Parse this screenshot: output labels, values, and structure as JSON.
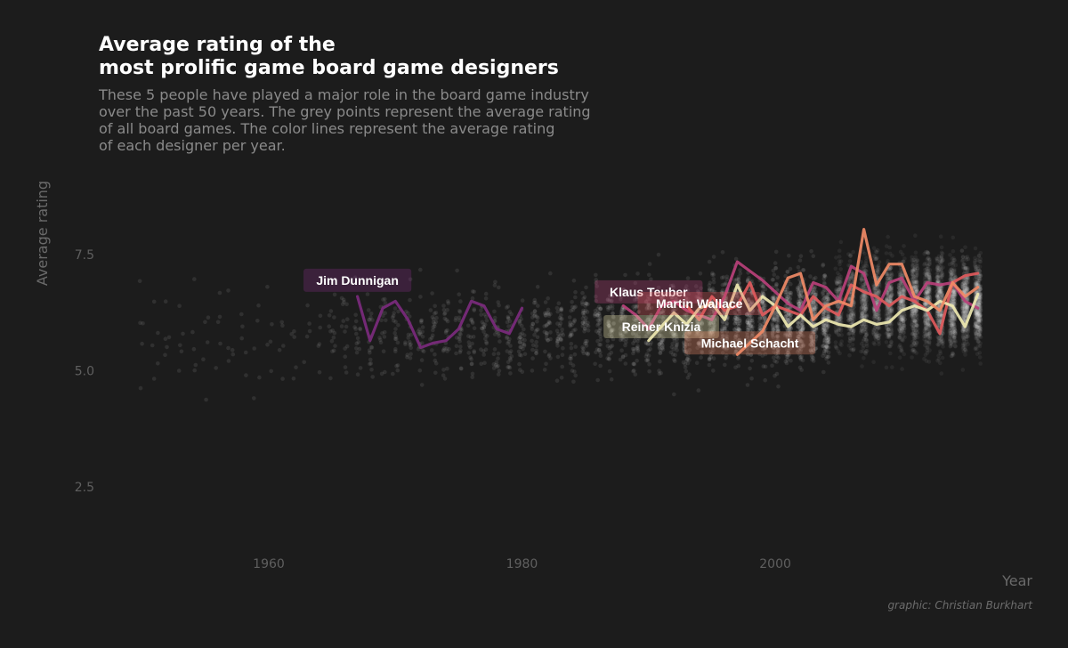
{
  "chart_data": {
    "type": "line",
    "title_lines": [
      "Average rating of the",
      "most prolific game board game designers"
    ],
    "subtitle_lines": [
      "These 5 people have played a major role in the board game industry",
      "over the past 50 years. The grey points represent the average rating",
      "of all board games. The color lines represent the average rating",
      "of each designer per year."
    ],
    "xlabel": "Year",
    "ylabel": "Average rating",
    "caption": "graphic: Christian Burkhart",
    "xlim": [
      1946.5,
      2017.5
    ],
    "ylim": [
      1.0,
      9.5
    ],
    "x_ticks": [
      1960,
      1980,
      2000
    ],
    "y_ticks": [
      2.5,
      5.0,
      7.5
    ],
    "y_tick_labels": [
      "2.5",
      "5.0",
      "7.5"
    ],
    "grid": false,
    "legend": "none (direct labels on lines)",
    "background_points": "grey scatter of average rating of all board games per year, 1950–2016, dense after 1990",
    "series": [
      {
        "name": "Jim Dunnigan",
        "color": "#7b2a7d",
        "label_year": 1967,
        "label_rating": 6.95,
        "x": [
          1967,
          1968,
          1969,
          1970,
          1971,
          1972,
          1973,
          1974,
          1975,
          1976,
          1977,
          1978,
          1979,
          1980
        ],
        "y": [
          6.6,
          5.65,
          6.35,
          6.5,
          6.1,
          5.5,
          5.6,
          5.65,
          5.9,
          6.5,
          6.4,
          5.9,
          5.8,
          6.35
        ]
      },
      {
        "name": "Klaus Teuber",
        "color": "#b8407a",
        "label_year": 1990,
        "label_rating": 6.7,
        "x": [
          1988,
          1989,
          1990,
          1991,
          1992,
          1993,
          1994,
          1995,
          1996,
          1997,
          1998,
          1999,
          2000,
          2001,
          2002,
          2003,
          2004,
          2005,
          2006,
          2007,
          2008,
          2009,
          2010,
          2011,
          2012,
          2013,
          2014,
          2015,
          2016
        ],
        "y": [
          6.4,
          6.2,
          5.9,
          6.4,
          6.5,
          6.3,
          6.2,
          6.1,
          6.6,
          7.35,
          7.15,
          6.95,
          6.7,
          6.45,
          6.3,
          6.9,
          6.8,
          6.5,
          7.25,
          7.1,
          6.3,
          6.9,
          7.0,
          6.5,
          6.9,
          6.85,
          6.9,
          6.5,
          6.35
        ]
      },
      {
        "name": "Martin Wallace",
        "color": "#e05a5c",
        "label_year": 1994,
        "label_rating": 6.45,
        "x": [
          1993,
          1994,
          1995,
          1996,
          1997,
          1998,
          1999,
          2000,
          2001,
          2002,
          2003,
          2004,
          2005,
          2006,
          2007,
          2008,
          2009,
          2010,
          2011,
          2012,
          2013,
          2014,
          2015,
          2016
        ],
        "y": [
          6.4,
          6.1,
          6.6,
          6.3,
          6.4,
          6.9,
          6.2,
          6.4,
          6.3,
          6.2,
          6.6,
          6.35,
          6.2,
          6.85,
          6.7,
          6.6,
          6.4,
          6.6,
          6.5,
          6.3,
          5.8,
          6.9,
          7.05,
          7.1
        ]
      },
      {
        "name": "Reiner Knizia",
        "color": "#eee8b0",
        "label_year": 1991,
        "label_rating": 5.95,
        "x": [
          1990,
          1991,
          1992,
          1993,
          1994,
          1995,
          1996,
          1997,
          1998,
          1999,
          2000,
          2001,
          2002,
          2003,
          2004,
          2005,
          2006,
          2007,
          2008,
          2009,
          2010,
          2011,
          2012,
          2013,
          2014,
          2015,
          2016
        ],
        "y": [
          5.65,
          5.95,
          6.25,
          6.0,
          6.35,
          6.45,
          6.1,
          6.85,
          6.3,
          6.6,
          6.4,
          5.95,
          6.2,
          5.95,
          6.1,
          6.0,
          5.95,
          6.1,
          6.0,
          6.05,
          6.3,
          6.4,
          6.3,
          6.5,
          6.4,
          5.95,
          6.65
        ]
      },
      {
        "name": "Michael Schacht",
        "color": "#f08a66",
        "label_year": 1998,
        "label_rating": 5.6,
        "x": [
          1997,
          1998,
          1999,
          2000,
          2001,
          2002,
          2003,
          2004,
          2005,
          2006,
          2007,
          2008,
          2009,
          2010,
          2011,
          2012,
          2013,
          2014,
          2015,
          2016
        ],
        "y": [
          5.35,
          5.6,
          5.85,
          6.4,
          7.0,
          7.1,
          6.1,
          6.4,
          6.5,
          6.4,
          8.05,
          6.85,
          7.3,
          7.3,
          6.6,
          6.5,
          6.3,
          6.9,
          6.6,
          6.8
        ]
      }
    ]
  }
}
